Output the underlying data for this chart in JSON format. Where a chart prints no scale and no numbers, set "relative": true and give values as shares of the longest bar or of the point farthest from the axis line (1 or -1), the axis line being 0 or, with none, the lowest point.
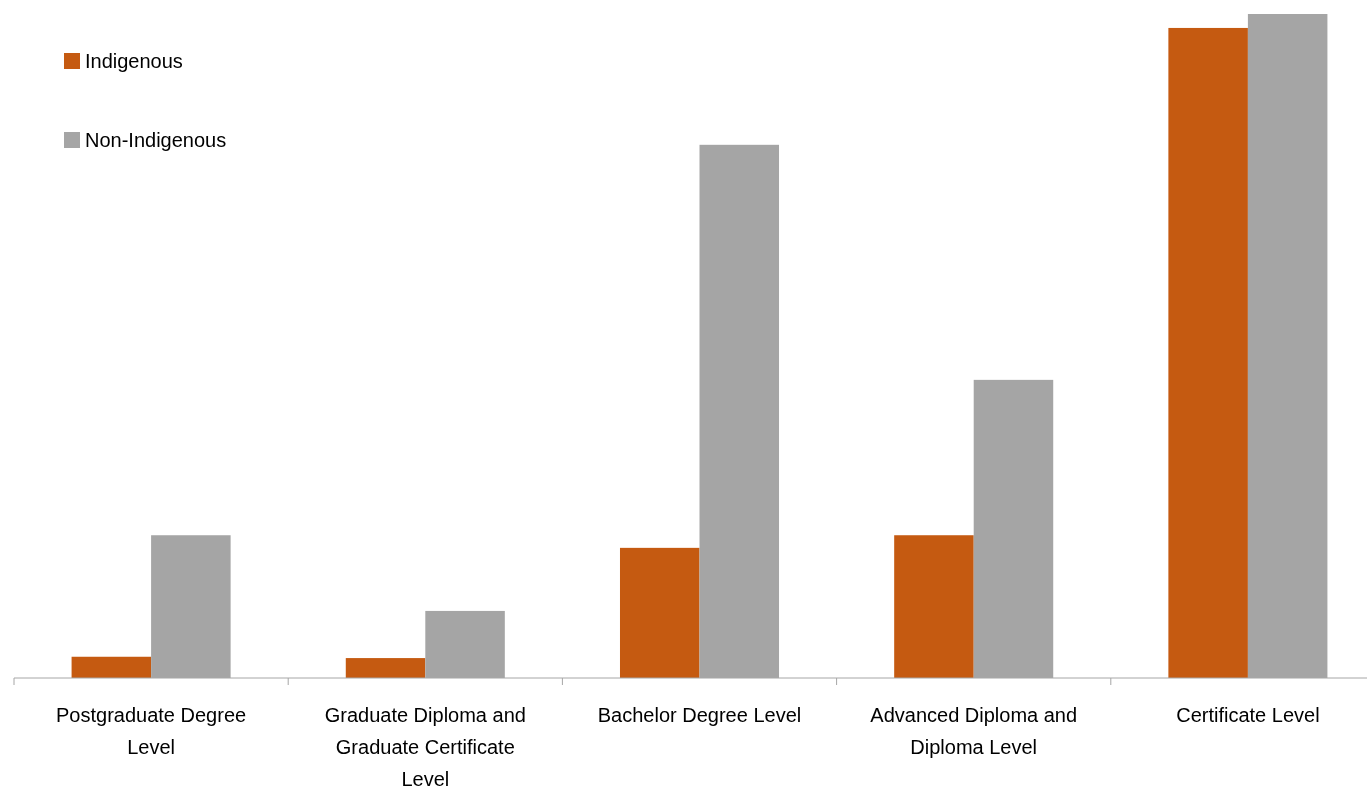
{
  "chart_data": {
    "type": "bar",
    "relative": true,
    "categories": [
      "Postgraduate Degree Level",
      "Graduate Diploma and Graduate Certificate Level",
      "Bachelor Degree Level",
      "Advanced Diploma and Diploma Level",
      "Certificate Level"
    ],
    "series": [
      {
        "name": "Indigenous",
        "color": "#c55a11",
        "values": [
          0.032,
          0.03,
          0.196,
          0.215,
          0.979
        ]
      },
      {
        "name": "Non-Indigenous",
        "color": "#a5a5a5",
        "values": [
          0.215,
          0.101,
          0.803,
          0.449,
          1
        ]
      }
    ],
    "legend": "top left"
  }
}
